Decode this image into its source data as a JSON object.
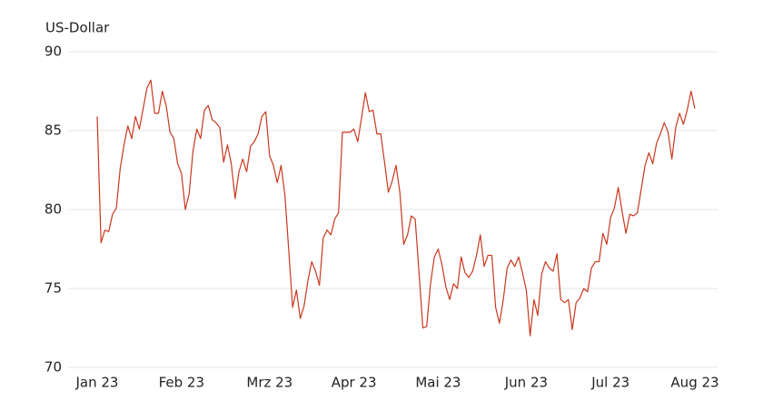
{
  "chart_data": {
    "type": "line",
    "ylabel": "US-Dollar",
    "categories": [
      "Jan 23",
      null,
      null,
      null,
      null,
      null,
      null,
      null,
      null,
      null,
      null,
      null,
      null,
      null,
      null,
      null,
      null,
      null,
      null,
      null,
      null,
      null,
      "Feb 23",
      null,
      null,
      null,
      null,
      null,
      null,
      null,
      null,
      null,
      null,
      null,
      null,
      null,
      null,
      null,
      null,
      null,
      null,
      null,
      null,
      null,
      null,
      "Mrz 23",
      null,
      null,
      null,
      null,
      null,
      null,
      null,
      null,
      null,
      null,
      null,
      null,
      null,
      null,
      null,
      null,
      null,
      null,
      null,
      null,
      null,
      "Apr 23",
      null,
      null,
      null,
      null,
      null,
      null,
      null,
      null,
      null,
      null,
      null,
      null,
      null,
      null,
      null,
      null,
      null,
      null,
      null,
      null,
      null,
      "Mai 23",
      null,
      null,
      null,
      null,
      null,
      null,
      null,
      null,
      null,
      null,
      null,
      null,
      null,
      null,
      null,
      null,
      null,
      null,
      null,
      null,
      null,
      null,
      "Jun 23",
      null,
      null,
      null,
      null,
      null,
      null,
      null,
      null,
      null,
      null,
      null,
      null,
      null,
      null,
      null,
      null,
      null,
      null,
      null,
      null,
      null,
      "Jul 23",
      null,
      null,
      null,
      null,
      null,
      null,
      null,
      null,
      null,
      null,
      null,
      null,
      null,
      null,
      null,
      null,
      null,
      null,
      null,
      null,
      null,
      "Aug 23"
    ],
    "values": [
      85.9,
      77.9,
      78.7,
      78.6,
      79.7,
      80.1,
      82.6,
      84.1,
      85.3,
      84.5,
      85.9,
      85.1,
      86.4,
      87.7,
      88.2,
      86.1,
      86.1,
      87.5,
      86.6,
      84.9,
      84.5,
      82.9,
      82.3,
      80.0,
      81.0,
      83.7,
      85.1,
      84.5,
      86.3,
      86.6,
      85.7,
      85.5,
      85.2,
      83.0,
      84.1,
      82.9,
      80.7,
      82.4,
      83.2,
      82.4,
      84.0,
      84.3,
      84.8,
      85.9,
      86.2,
      83.4,
      82.8,
      81.7,
      82.8,
      80.9,
      77.4,
      73.8,
      74.9,
      73.1,
      73.9,
      75.5,
      76.7,
      76.1,
      75.2,
      78.2,
      78.7,
      78.4,
      79.4,
      79.8,
      84.9,
      84.9,
      84.9,
      85.1,
      84.3,
      85.8,
      87.4,
      86.2,
      86.3,
      84.8,
      84.8,
      83.0,
      81.1,
      81.8,
      82.8,
      81.1,
      77.8,
      78.4,
      79.6,
      79.4,
      76.0,
      72.5,
      72.6,
      75.3,
      77.0,
      77.5,
      76.5,
      75.1,
      74.3,
      75.3,
      75.0,
      77.0,
      76.0,
      75.7,
      76.1,
      77.1,
      78.4,
      76.4,
      77.1,
      77.1,
      73.8,
      72.8,
      74.3,
      76.3,
      76.8,
      76.4,
      77.0,
      76.0,
      74.9,
      72.0,
      74.3,
      73.3,
      75.9,
      76.7,
      76.3,
      76.1,
      77.2,
      74.3,
      74.1,
      74.3,
      72.4,
      74.1,
      74.4,
      75.0,
      74.8,
      76.3,
      76.7,
      76.7,
      78.5,
      77.8,
      79.5,
      80.1,
      81.4,
      79.9,
      78.5,
      79.7,
      79.6,
      79.8,
      81.3,
      82.8,
      83.6,
      82.9,
      84.2,
      84.8,
      85.5,
      84.9,
      83.2,
      85.2,
      86.1,
      85.4,
      86.3,
      87.5,
      86.4
    ],
    "color": "#c8381e",
    "ylim": [
      70,
      90
    ],
    "yticks": [
      70,
      75,
      80,
      85,
      90
    ],
    "grid": true
  }
}
